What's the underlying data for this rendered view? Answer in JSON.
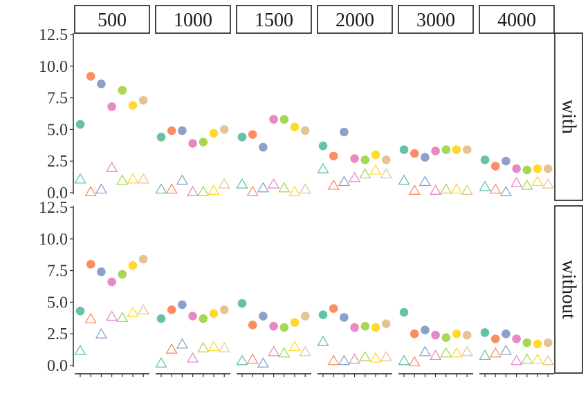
{
  "colors": [
    "#66c2a5",
    "#fc8d62",
    "#8da0cb",
    "#e78ac3",
    "#a6d854",
    "#ffd92f",
    "#e5c494"
  ],
  "chart_data": {
    "type": "scatter",
    "facet_columns": [
      "500",
      "1000",
      "1500",
      "2000",
      "3000",
      "4000"
    ],
    "facet_rows": [
      "with",
      "without"
    ],
    "y_ticks": [
      "0.0",
      "2.5",
      "5.0",
      "7.5",
      "10.0",
      "12.5"
    ],
    "ylim": [
      0,
      12.5
    ],
    "x_per_panel": 7,
    "marker_kinds": [
      "filled circle",
      "open triangle"
    ],
    "panels": {
      "with": {
        "500": {
          "circles": [
            5.4,
            9.2,
            8.6,
            6.8,
            8.1,
            6.9,
            7.3
          ],
          "triangles": [
            1.1,
            0.1,
            0.3,
            2.0,
            1.0,
            1.1,
            1.1
          ]
        },
        "1000": {
          "circles": [
            4.4,
            4.9,
            4.9,
            3.9,
            4.0,
            4.7,
            5.0
          ],
          "triangles": [
            0.3,
            0.3,
            1.0,
            0.1,
            0.1,
            0.2,
            0.7
          ]
        },
        "1500": {
          "circles": [
            4.4,
            4.6,
            3.6,
            5.8,
            5.8,
            5.2,
            4.9
          ],
          "triangles": [
            0.7,
            0.1,
            0.4,
            0.7,
            0.4,
            0.1,
            0.3
          ]
        },
        "2000": {
          "circles": [
            3.7,
            2.9,
            4.8,
            2.7,
            2.6,
            3.0,
            2.6
          ],
          "triangles": [
            1.9,
            0.6,
            0.9,
            1.2,
            1.5,
            1.8,
            1.5
          ]
        },
        "3000": {
          "circles": [
            3.4,
            3.1,
            2.8,
            3.3,
            3.4,
            3.4,
            3.4
          ],
          "triangles": [
            1.0,
            0.2,
            0.9,
            0.2,
            0.3,
            0.3,
            0.2
          ]
        },
        "4000": {
          "circles": [
            2.6,
            2.1,
            2.5,
            1.9,
            1.8,
            1.9,
            1.9
          ],
          "triangles": [
            0.5,
            0.3,
            0.1,
            0.8,
            0.6,
            0.9,
            0.7
          ]
        }
      },
      "without": {
        "500": {
          "circles": [
            4.3,
            8.0,
            7.4,
            6.6,
            7.2,
            7.9,
            8.4
          ],
          "triangles": [
            1.2,
            3.7,
            2.5,
            3.9,
            3.8,
            4.2,
            4.4
          ]
        },
        "1000": {
          "circles": [
            3.7,
            4.4,
            4.8,
            3.9,
            3.7,
            4.1,
            4.4
          ],
          "triangles": [
            0.2,
            1.3,
            1.7,
            0.6,
            1.4,
            1.5,
            1.4
          ]
        },
        "1500": {
          "circles": [
            4.9,
            3.2,
            3.9,
            3.1,
            3.0,
            3.4,
            3.9
          ],
          "triangles": [
            0.4,
            0.5,
            0.2,
            1.1,
            1.0,
            1.5,
            1.1
          ]
        },
        "2000": {
          "circles": [
            4.0,
            4.5,
            3.8,
            3.0,
            3.1,
            3.0,
            3.3
          ],
          "triangles": [
            1.9,
            0.4,
            0.4,
            0.5,
            0.7,
            0.6,
            0.7
          ]
        },
        "3000": {
          "circles": [
            4.2,
            2.5,
            2.8,
            2.4,
            2.2,
            2.5,
            2.4
          ],
          "triangles": [
            0.4,
            0.3,
            1.1,
            0.8,
            1.0,
            1.0,
            1.1
          ]
        },
        "4000": {
          "circles": [
            2.6,
            2.1,
            2.5,
            2.1,
            1.8,
            1.7,
            1.8
          ],
          "triangles": [
            0.8,
            1.0,
            1.2,
            0.4,
            0.5,
            0.5,
            0.4
          ]
        }
      }
    }
  }
}
